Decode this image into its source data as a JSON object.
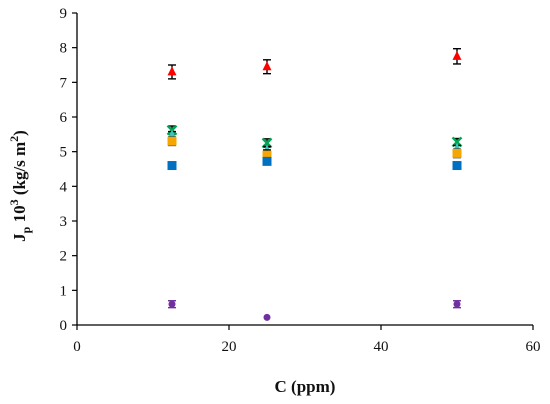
{
  "chart_data": {
    "type": "scatter",
    "title": "",
    "xlabel": "C (ppm)",
    "ylabel": {
      "main": "J",
      "sub": "p",
      "rest": " 10",
      "sup": "3",
      "unit_pre": " (kg/s m",
      "unit_sup": "2",
      "unit_post": ")"
    },
    "xlim": [
      0,
      60
    ],
    "ylim": [
      0,
      9
    ],
    "xticks": [
      0,
      20,
      40,
      60
    ],
    "yticks": [
      0,
      1,
      2,
      3,
      4,
      5,
      6,
      7,
      8,
      9
    ],
    "grid": false,
    "legend": "none",
    "series": [
      {
        "marker": "triangle",
        "color": "#ff0000",
        "errcolor": "#000000",
        "x": [
          12.5,
          25,
          50
        ],
        "y": [
          7.3,
          7.45,
          7.75
        ],
        "err": [
          0.2,
          0.2,
          0.22
        ]
      },
      {
        "marker": "x",
        "color": "#00a651",
        "errcolor": "#000000",
        "x": [
          12.5,
          25,
          50
        ],
        "y": [
          5.62,
          5.25,
          5.28
        ],
        "err": [
          0.12,
          0.12,
          0.1
        ]
      },
      {
        "marker": "triangle",
        "color": "#40c0c0",
        "errcolor": "#000000",
        "x": [
          12.5,
          25,
          50
        ],
        "y": [
          5.48,
          5.05,
          5.1
        ],
        "err": [
          0.1,
          0.1,
          0.08
        ]
      },
      {
        "marker": "square",
        "color": "#f7a600",
        "errcolor": "#000000",
        "x": [
          12.5,
          25,
          50
        ],
        "y": [
          5.3,
          4.9,
          4.95
        ],
        "err": [
          0.12,
          0.15,
          0.12
        ]
      },
      {
        "marker": "square",
        "color": "#0070c0",
        "errcolor": "#000000",
        "x": [
          12.5,
          25,
          50
        ],
        "y": [
          4.6,
          4.72,
          4.6
        ],
        "err": [
          0.08,
          0.08,
          0.08
        ]
      },
      {
        "marker": "circle",
        "color": "#7030a0",
        "errcolor": "#7030a0",
        "x": [
          12.5,
          25,
          50
        ],
        "y": [
          0.6,
          0.22,
          0.6
        ],
        "err": [
          0.1,
          0.0,
          0.1
        ]
      }
    ]
  }
}
